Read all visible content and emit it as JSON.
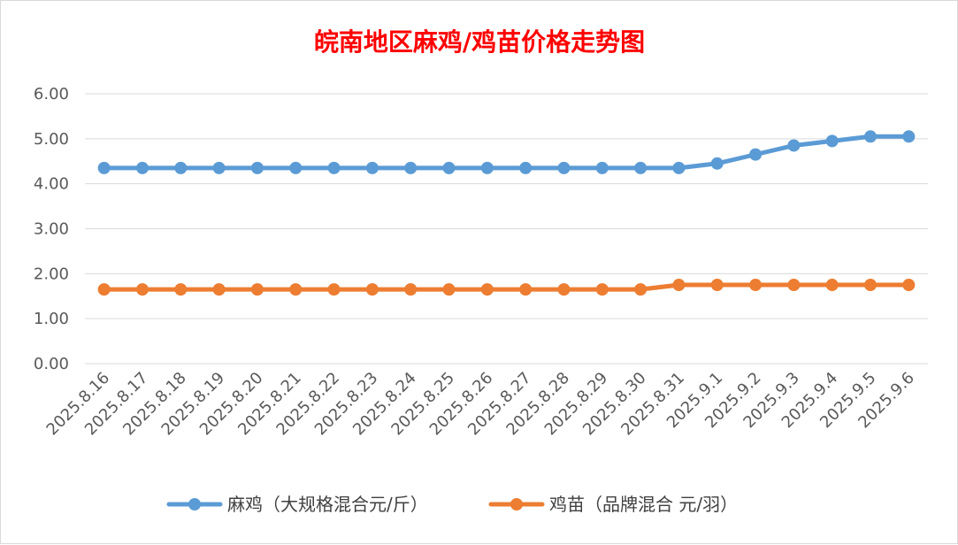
{
  "chart_data": {
    "type": "line",
    "title": "皖南地区麻鸡/鸡苗价格走势图",
    "xlabel": "",
    "ylabel": "",
    "categories": [
      "2025.8.16",
      "2025.8.17",
      "2025.8.18",
      "2025.8.19",
      "2025.8.20",
      "2025.8.21",
      "2025.8.22",
      "2025.8.23",
      "2025.8.24",
      "2025.8.25",
      "2025.8.26",
      "2025.8.27",
      "2025.8.28",
      "2025.8.29",
      "2025.8.30",
      "2025.8.31",
      "2025.9.1",
      "2025.9.2",
      "2025.9.3",
      "2025.9.4",
      "2025.9.5",
      "2025.9.6"
    ],
    "ylim": [
      0,
      6
    ],
    "yticks": [
      "0.00",
      "1.00",
      "2.00",
      "3.00",
      "4.00",
      "5.00",
      "6.00"
    ],
    "grid": true,
    "legend_position": "bottom",
    "series": [
      {
        "name": "麻鸡（大规格混合元/斤）",
        "color": "#5b9bd5",
        "values": [
          4.35,
          4.35,
          4.35,
          4.35,
          4.35,
          4.35,
          4.35,
          4.35,
          4.35,
          4.35,
          4.35,
          4.35,
          4.35,
          4.35,
          4.35,
          4.35,
          4.45,
          4.65,
          4.85,
          4.95,
          5.05,
          5.05
        ]
      },
      {
        "name": "鸡苗（品牌混合 元/羽）",
        "color": "#ed7d31",
        "values": [
          1.65,
          1.65,
          1.65,
          1.65,
          1.65,
          1.65,
          1.65,
          1.65,
          1.65,
          1.65,
          1.65,
          1.65,
          1.65,
          1.65,
          1.65,
          1.75,
          1.75,
          1.75,
          1.75,
          1.75,
          1.75,
          1.75
        ]
      }
    ],
    "gridline_color": "#d9d9d9"
  }
}
